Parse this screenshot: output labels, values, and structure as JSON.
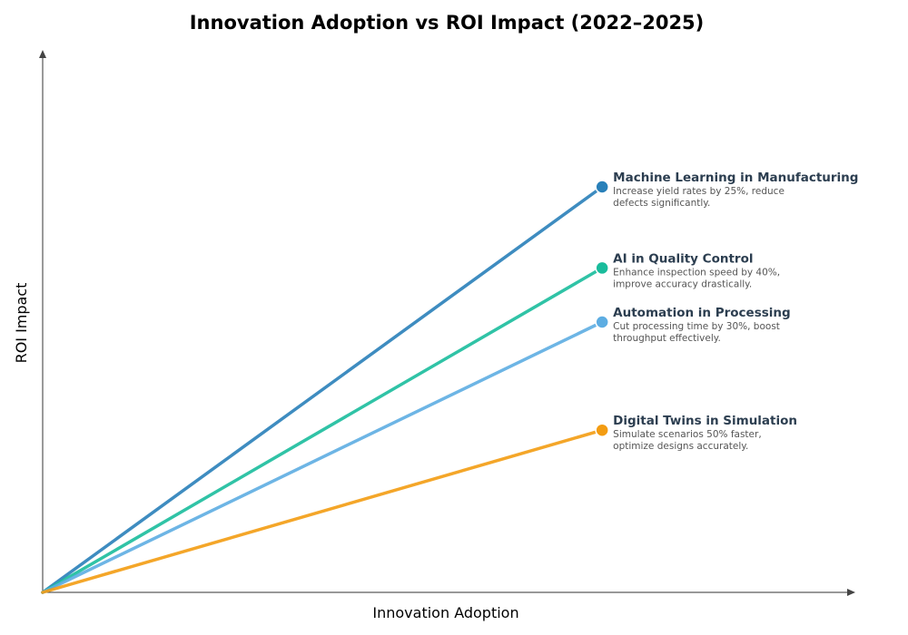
{
  "chart_data": {
    "type": "line",
    "title": "Innovation Adoption vs ROI Impact (2022–2025)",
    "xlabel": "Innovation Adoption",
    "ylabel": "ROI Impact",
    "xlim": [
      0,
      1
    ],
    "ylim": [
      0,
      1
    ],
    "grid": false,
    "series": [
      {
        "name": "Machine Learning in Manufacturing",
        "description": [
          "Increase yield rates by 25%, reduce",
          "defects significantly."
        ],
        "color": "#2980b9",
        "x": [
          0,
          0.69
        ],
        "y": [
          0,
          0.75
        ]
      },
      {
        "name": "AI in Quality Control",
        "description": [
          "Enhance inspection speed by 40%,",
          "improve accuracy drastically."
        ],
        "color": "#1abc9c",
        "x": [
          0,
          0.69
        ],
        "y": [
          0,
          0.6
        ]
      },
      {
        "name": "Automation in Processing",
        "description": [
          "Cut processing time by 30%, boost",
          "throughput effectively."
        ],
        "color": "#5dade2",
        "x": [
          0,
          0.69
        ],
        "y": [
          0,
          0.5
        ]
      },
      {
        "name": "Digital Twins in Simulation",
        "description": [
          "Simulate scenarios 50% faster,",
          "optimize designs accurately."
        ],
        "color": "#f39c12",
        "x": [
          0,
          0.69
        ],
        "y": [
          0,
          0.3
        ]
      }
    ]
  }
}
